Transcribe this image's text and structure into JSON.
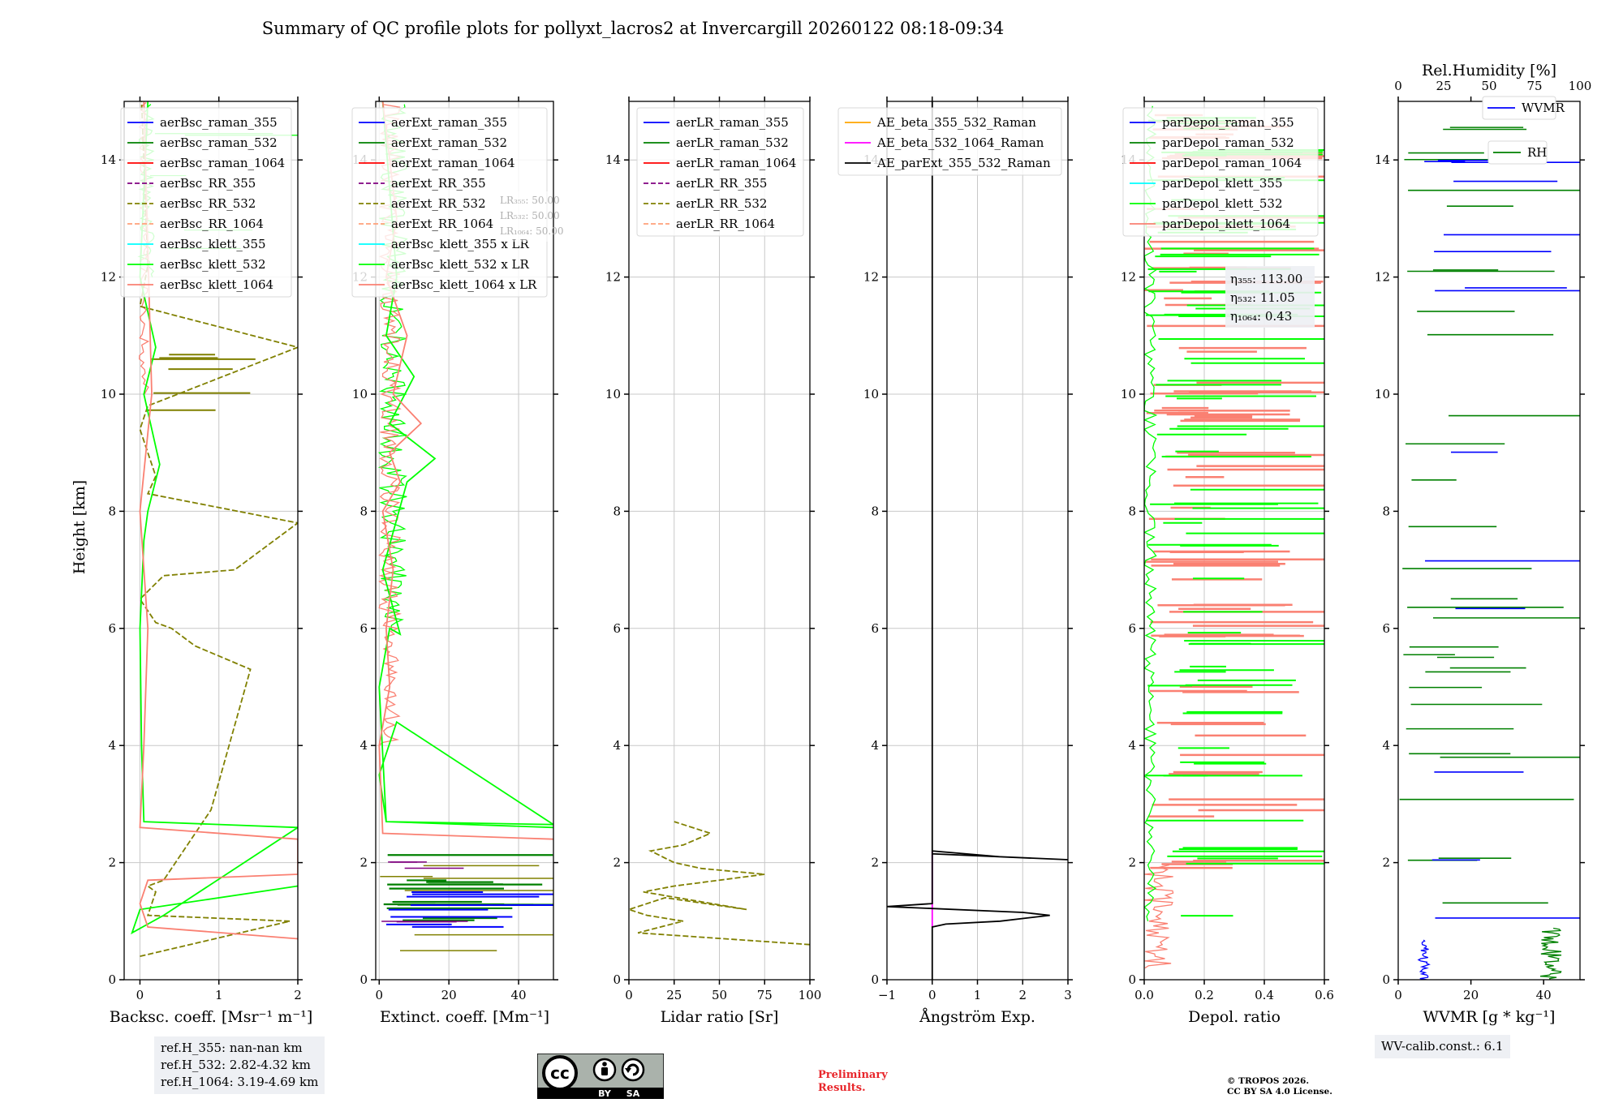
{
  "title": "Summary of QC profile plots for pollyxt_lacros2 at Invercargill 20260122 08:18-09:34",
  "y_axis_label": "Height [km]",
  "chart_data": [
    {
      "type": "line",
      "panel": "backscatter",
      "xlabel": "Backsc. coeff. [Msr⁻¹ m⁻¹]",
      "xlim": [
        -0.2,
        2.0
      ],
      "xticks": [
        0,
        1,
        2
      ],
      "ylim": [
        0,
        15
      ],
      "yticks": [
        0,
        2,
        4,
        6,
        8,
        10,
        12,
        14
      ],
      "grid": true,
      "legend_position": "top-right",
      "series": [
        {
          "name": "aerBsc_raman_355",
          "color": "#0000ff",
          "dash": "solid"
        },
        {
          "name": "aerBsc_raman_532",
          "color": "#008000",
          "dash": "solid"
        },
        {
          "name": "aerBsc_raman_1064",
          "color": "#ff0000",
          "dash": "solid"
        },
        {
          "name": "aerBsc_RR_355",
          "color": "#800080",
          "dash": "dashed"
        },
        {
          "name": "aerBsc_RR_532",
          "color": "#808000",
          "dash": "dashed",
          "x": [
            0,
            1.9,
            0.1,
            0.2,
            0.1,
            0.3,
            0.5,
            0.9,
            1.4,
            0.7,
            0.4,
            0.2,
            0.0,
            0.3,
            1.2,
            2.0,
            0.1,
            0.2,
            0.0,
            0.1,
            2.0,
            0.0,
            0.1,
            0.05,
            0.02
          ],
          "y": [
            0.4,
            1.0,
            1.1,
            1.5,
            1.6,
            1.7,
            2.1,
            2.9,
            5.3,
            5.7,
            6.0,
            6.1,
            6.5,
            6.9,
            7.0,
            7.8,
            8.3,
            8.6,
            9.4,
            9.8,
            10.8,
            11.5,
            12.2,
            14.0,
            15.0
          ]
        },
        {
          "name": "aerBsc_RR_1064",
          "color": "#ffa07a",
          "dash": "dashed"
        },
        {
          "name": "aerBsc_klett_355",
          "color": "#00ffff",
          "dash": "solid"
        },
        {
          "name": "aerBsc_klett_532",
          "color": "#00ff00",
          "dash": "solid",
          "x": [
            2.0,
            0.0,
            -0.1,
            0.3,
            2.0,
            0.05,
            0.02,
            0.0,
            0.05,
            0.1,
            0.25,
            0.05,
            0.2,
            0.0,
            0.1
          ],
          "y": [
            1.6,
            1.2,
            0.8,
            1.1,
            2.6,
            2.7,
            4.0,
            6.0,
            7.5,
            8.0,
            8.8,
            10.0,
            10.8,
            12.0,
            15.0
          ]
        },
        {
          "name": "aerBsc_klett_1064",
          "color": "#fa8072",
          "dash": "solid",
          "x": [
            2.0,
            0.1,
            0.0,
            0.1,
            2.0,
            2.0,
            0.0,
            0.05,
            0.1,
            0.0,
            0.15,
            0.05
          ],
          "y": [
            0.7,
            0.9,
            1.3,
            1.7,
            1.8,
            2.4,
            2.6,
            4.0,
            6.0,
            8.0,
            10.0,
            15.0
          ]
        }
      ],
      "annotations": {
        "ref_box": [
          "ref.H_355: nan-nan km",
          "ref.H_532: 2.82-4.32 km",
          "ref.H_1064: 3.19-4.69 km"
        ]
      }
    },
    {
      "type": "line",
      "panel": "extinction",
      "xlabel": "Extinct. coeff. [Mm⁻¹]",
      "xlim": [
        -1,
        50
      ],
      "xticks": [
        0,
        20,
        40
      ],
      "ylim": [
        0,
        15
      ],
      "yticks": [
        0,
        2,
        4,
        6,
        8,
        10,
        12,
        14
      ],
      "grid": true,
      "legend_position": "top-right",
      "series": [
        {
          "name": "aerExt_raman_355",
          "color": "#0000ff",
          "dash": "solid"
        },
        {
          "name": "aerExt_raman_532",
          "color": "#008000",
          "dash": "solid"
        },
        {
          "name": "aerExt_raman_1064",
          "color": "#ff0000",
          "dash": "solid"
        },
        {
          "name": "aerExt_RR_355",
          "color": "#800080",
          "dash": "dashed"
        },
        {
          "name": "aerExt_RR_532",
          "color": "#808000",
          "dash": "dashed"
        },
        {
          "name": "aerExt_RR_1064",
          "color": "#ffa07a",
          "dash": "dashed"
        },
        {
          "name": "aerBsc_klett_355 x LR",
          "color": "#00ffff",
          "dash": "solid"
        },
        {
          "name": "aerBsc_klett_532 x LR",
          "color": "#00ff00",
          "dash": "solid",
          "x": [
            50,
            2,
            0,
            5,
            50,
            2,
            0,
            3,
            6,
            1,
            8,
            16,
            3,
            10,
            2,
            5,
            1
          ],
          "y": [
            2.6,
            2.7,
            3.5,
            4.4,
            2.65,
            2.7,
            5.0,
            6.0,
            5.9,
            7.0,
            8.5,
            8.9,
            9.5,
            10.3,
            11.0,
            12.0,
            15.0
          ]
        },
        {
          "name": "aerBsc_klett_1064 x LR",
          "color": "#fa8072",
          "dash": "solid",
          "x": [
            50,
            1,
            0,
            3,
            2,
            4,
            1,
            6,
            3,
            12,
            4,
            8,
            2,
            5,
            1
          ],
          "y": [
            2.4,
            2.5,
            4.0,
            5.0,
            6.0,
            7.0,
            8.0,
            8.5,
            9.0,
            9.5,
            10.0,
            11.0,
            12.0,
            13.0,
            15.0
          ]
        }
      ],
      "annotations": {
        "lr_box": [
          "LR₃₅₅: 50.00",
          "LR₅₃₂: 50.00",
          "LR₁₀₆₄: 50.00"
        ]
      }
    },
    {
      "type": "line",
      "panel": "lidar_ratio",
      "xlabel": "Lidar ratio [Sr]",
      "xlim": [
        0,
        100
      ],
      "xticks": [
        0,
        25,
        50,
        75,
        100
      ],
      "ylim": [
        0,
        15
      ],
      "yticks": [
        0,
        2,
        4,
        6,
        8,
        10,
        12,
        14
      ],
      "grid": true,
      "legend_position": "top-right",
      "series": [
        {
          "name": "aerLR_raman_355",
          "color": "#0000ff",
          "dash": "solid"
        },
        {
          "name": "aerLR_raman_532",
          "color": "#008000",
          "dash": "solid"
        },
        {
          "name": "aerLR_raman_1064",
          "color": "#ff0000",
          "dash": "solid"
        },
        {
          "name": "aerLR_RR_355",
          "color": "#800080",
          "dash": "dashed"
        },
        {
          "name": "aerLR_RR_532",
          "color": "#808000",
          "dash": "dashed",
          "x": [
            100,
            5,
            30,
            10,
            0,
            20,
            65,
            8,
            25,
            75,
            40,
            25,
            12,
            30,
            45,
            25
          ],
          "y": [
            0.6,
            0.8,
            1.0,
            1.1,
            1.2,
            1.4,
            1.2,
            1.5,
            1.6,
            1.8,
            1.9,
            2.0,
            2.2,
            2.3,
            2.5,
            2.7
          ]
        },
        {
          "name": "aerLR_RR_1064",
          "color": "#ffa07a",
          "dash": "dashed"
        }
      ]
    },
    {
      "type": "line",
      "panel": "angstrom",
      "xlabel": "Ångström Exp.",
      "xlim": [
        -1,
        3
      ],
      "xticks": [
        -1,
        0,
        1,
        2,
        3
      ],
      "ylim": [
        0,
        15
      ],
      "yticks": [
        0,
        2,
        4,
        6,
        8,
        10,
        12,
        14
      ],
      "grid": true,
      "legend_position": "top-right",
      "series": [
        {
          "name": "AE_beta_355_532_Raman",
          "color": "#ffa500",
          "dash": "solid"
        },
        {
          "name": "AE_beta_532_1064_Raman",
          "color": "#ff00ff",
          "dash": "solid",
          "x": [
            0,
            0
          ],
          "y": [
            0.9,
            2.2
          ]
        },
        {
          "name": "AE_parExt_355_532_Raman",
          "color": "#000000",
          "dash": "solid",
          "x": [
            0,
            0,
            0.3,
            1.5,
            2.6,
            2.0,
            -1,
            0,
            0,
            1.5,
            3,
            0,
            0
          ],
          "y": [
            0,
            0.9,
            0.95,
            1.0,
            1.1,
            1.15,
            1.25,
            1.3,
            2.2,
            2.1,
            2.05,
            2.15,
            15.0
          ]
        }
      ]
    },
    {
      "type": "line",
      "panel": "depolarization",
      "xlabel": "Depol. ratio",
      "xlim": [
        0,
        0.6
      ],
      "xticks": [
        0.0,
        0.2,
        0.4,
        0.6
      ],
      "ylim": [
        0,
        15
      ],
      "yticks": [
        0,
        2,
        4,
        6,
        8,
        10,
        12,
        14
      ],
      "grid": true,
      "legend_position": "top-right",
      "series": [
        {
          "name": "parDepol_raman_355",
          "color": "#0000ff",
          "dash": "solid"
        },
        {
          "name": "parDepol_raman_532",
          "color": "#008000",
          "dash": "solid"
        },
        {
          "name": "parDepol_raman_1064",
          "color": "#ff0000",
          "dash": "solid"
        },
        {
          "name": "parDepol_klett_355",
          "color": "#00ffff",
          "dash": "solid"
        },
        {
          "name": "parDepol_klett_532",
          "color": "#00ff00",
          "dash": "solid"
        },
        {
          "name": "parDepol_klett_1064",
          "color": "#fa8072",
          "dash": "solid"
        }
      ],
      "annotations": {
        "eta_box": [
          "η₃₅₅: 113.00",
          "η₅₃₂: 11.05",
          "η₁₀₆₄: 0.43"
        ]
      }
    },
    {
      "type": "line",
      "panel": "water_vapor",
      "xlabel": "WVMR [g * kg⁻¹]",
      "xlim": [
        0,
        50
      ],
      "xticks": [
        0,
        20,
        40
      ],
      "top_xlabel": "Rel.Humidity [%]",
      "top_xlim": [
        0,
        100
      ],
      "top_xticks": [
        0,
        25,
        50,
        75,
        100
      ],
      "ylim": [
        0,
        15
      ],
      "yticks": [
        0,
        2,
        4,
        6,
        8,
        10,
        12,
        14
      ],
      "grid": false,
      "legend_position": "top-right",
      "series": [
        {
          "name": "WVMR",
          "color": "#0000ff",
          "dash": "solid"
        },
        {
          "name": "RH",
          "color": "#008000",
          "dash": "solid"
        }
      ],
      "annotations": {
        "calib_box": "WV-calib.const.: 6.1"
      }
    }
  ],
  "footer": {
    "preliminary": [
      "Preliminary",
      "Results."
    ],
    "copyright": [
      "© TROPOS 2026.",
      "CC BY SA 4.0 License."
    ],
    "license_badge": {
      "cc": "cc",
      "by": "BY",
      "sa": "SA"
    }
  },
  "colors": {
    "grid": "#c8c8c8",
    "box_bg": "#eef0f4",
    "prelim": "#e8262b"
  }
}
